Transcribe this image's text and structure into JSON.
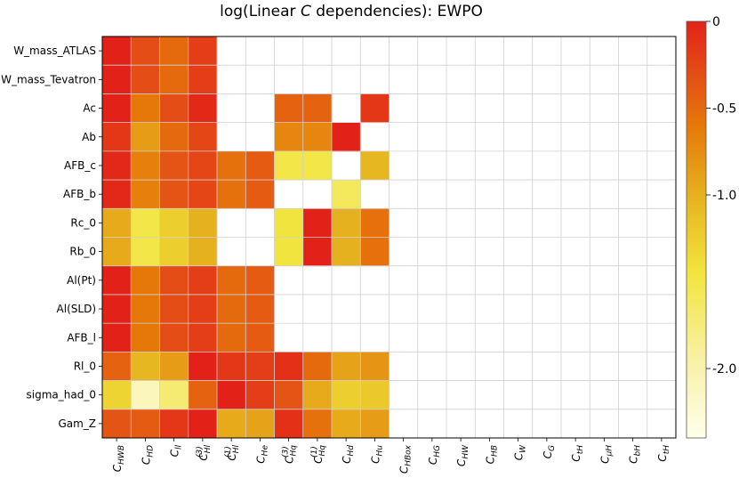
{
  "chart_data": {
    "type": "heatmap",
    "title_parts": {
      "prefix": "log(Linear ",
      "italic": "C",
      "suffix": " dependencies): EWPO"
    },
    "title": "log(Linear C dependencies): EWPO",
    "rows": [
      "W_mass_ATLAS",
      "W_mass_Tevatron",
      "Ac",
      "Ab",
      "AFB_c",
      "AFB_b",
      "Rc_0",
      "Rb_0",
      "Al(Pt)",
      "Al(SLD)",
      "AFB_l",
      "Rl_0",
      "sigma_had_0",
      "Gam_Z"
    ],
    "columns": [
      {
        "base": "C",
        "sub": "HWB",
        "sup": ""
      },
      {
        "base": "C",
        "sub": "HD",
        "sup": ""
      },
      {
        "base": "C",
        "sub": "ll",
        "sup": ""
      },
      {
        "base": "C",
        "sub": "Hl",
        "sup": "(3)"
      },
      {
        "base": "C",
        "sub": "Hl",
        "sup": "(1)"
      },
      {
        "base": "C",
        "sub": "He",
        "sup": ""
      },
      {
        "base": "C",
        "sub": "Hq",
        "sup": "(3)"
      },
      {
        "base": "C",
        "sub": "Hq",
        "sup": "(1)"
      },
      {
        "base": "C",
        "sub": "Hd",
        "sup": ""
      },
      {
        "base": "C",
        "sub": "Hu",
        "sup": ""
      },
      {
        "base": "C",
        "sub": "HBox",
        "sup": ""
      },
      {
        "base": "C",
        "sub": "HG",
        "sup": ""
      },
      {
        "base": "C",
        "sub": "HW",
        "sup": ""
      },
      {
        "base": "C",
        "sub": "HB",
        "sup": ""
      },
      {
        "base": "C",
        "sub": "W",
        "sup": ""
      },
      {
        "base": "C",
        "sub": "G",
        "sup": ""
      },
      {
        "base": "C",
        "sub": "tH",
        "sup": ""
      },
      {
        "base": "C",
        "sub": "μH",
        "sup": ""
      },
      {
        "base": "C",
        "sub": "bH",
        "sup": ""
      },
      {
        "base": "C",
        "sub": "tH",
        "sup": ""
      }
    ],
    "values": [
      [
        0.0,
        -0.3,
        -0.5,
        -0.2,
        null,
        null,
        null,
        null,
        null,
        null,
        null,
        null,
        null,
        null,
        null,
        null,
        null,
        null,
        null,
        null
      ],
      [
        0.0,
        -0.3,
        -0.5,
        -0.2,
        null,
        null,
        null,
        null,
        null,
        null,
        null,
        null,
        null,
        null,
        null,
        null,
        null,
        null,
        null,
        null
      ],
      [
        0.0,
        -0.6,
        -0.3,
        -0.05,
        null,
        null,
        -0.45,
        -0.45,
        null,
        -0.15,
        null,
        null,
        null,
        null,
        null,
        null,
        null,
        null,
        null,
        null
      ],
      [
        -0.15,
        -0.85,
        -0.5,
        -0.25,
        null,
        null,
        -0.7,
        -0.7,
        0.0,
        null,
        null,
        null,
        null,
        null,
        null,
        null,
        null,
        null,
        null,
        null
      ],
      [
        -0.05,
        -0.65,
        -0.35,
        -0.25,
        -0.55,
        -0.4,
        -1.5,
        -1.5,
        null,
        -1.05,
        null,
        null,
        null,
        null,
        null,
        null,
        null,
        null,
        null,
        null
      ],
      [
        -0.05,
        -0.65,
        -0.35,
        -0.25,
        -0.55,
        -0.4,
        null,
        null,
        -1.6,
        null,
        null,
        null,
        null,
        null,
        null,
        null,
        null,
        null,
        null,
        null
      ],
      [
        -0.95,
        -1.5,
        -1.25,
        -1.0,
        null,
        null,
        -1.45,
        0.0,
        -1.0,
        -0.55,
        null,
        null,
        null,
        null,
        null,
        null,
        null,
        null,
        null,
        null
      ],
      [
        -0.95,
        -1.5,
        -1.25,
        -1.0,
        null,
        null,
        -1.45,
        0.0,
        -1.0,
        -0.55,
        null,
        null,
        null,
        null,
        null,
        null,
        null,
        null,
        null,
        null
      ],
      [
        0.0,
        -0.6,
        -0.3,
        -0.2,
        -0.5,
        -0.4,
        null,
        null,
        null,
        null,
        null,
        null,
        null,
        null,
        null,
        null,
        null,
        null,
        null,
        null
      ],
      [
        0.0,
        -0.6,
        -0.3,
        -0.2,
        -0.5,
        -0.4,
        null,
        null,
        null,
        null,
        null,
        null,
        null,
        null,
        null,
        null,
        null,
        null,
        null,
        null
      ],
      [
        0.0,
        -0.6,
        -0.3,
        -0.2,
        -0.5,
        -0.4,
        null,
        null,
        null,
        null,
        null,
        null,
        null,
        null,
        null,
        null,
        null,
        null,
        null,
        null
      ],
      [
        -0.45,
        -1.05,
        -0.85,
        0.0,
        -0.15,
        -0.2,
        -0.1,
        -0.5,
        -0.9,
        -0.8,
        null,
        null,
        null,
        null,
        null,
        null,
        null,
        null,
        null,
        null
      ],
      [
        -1.3,
        -2.1,
        -1.7,
        -0.45,
        0.0,
        -0.2,
        -0.35,
        -0.95,
        -1.25,
        -1.2,
        null,
        null,
        null,
        null,
        null,
        null,
        null,
        null,
        null,
        null
      ],
      [
        -0.35,
        -0.4,
        -0.15,
        0.0,
        -0.95,
        -0.9,
        -0.1,
        -0.55,
        -0.95,
        -0.85,
        null,
        null,
        null,
        null,
        null,
        null,
        null,
        null,
        null,
        null
      ]
    ],
    "colorbar": {
      "vmin": -2.4,
      "vmax": 0,
      "ticks": [
        0,
        -0.5,
        -1.0,
        -2.0
      ],
      "tick_labels": [
        "0",
        "-0.5",
        "-1.0",
        "-2.0"
      ],
      "colormap": "YlOrRd-like (white → yellow → orange → red)"
    },
    "grid": true,
    "xlabel": "",
    "ylabel": ""
  }
}
